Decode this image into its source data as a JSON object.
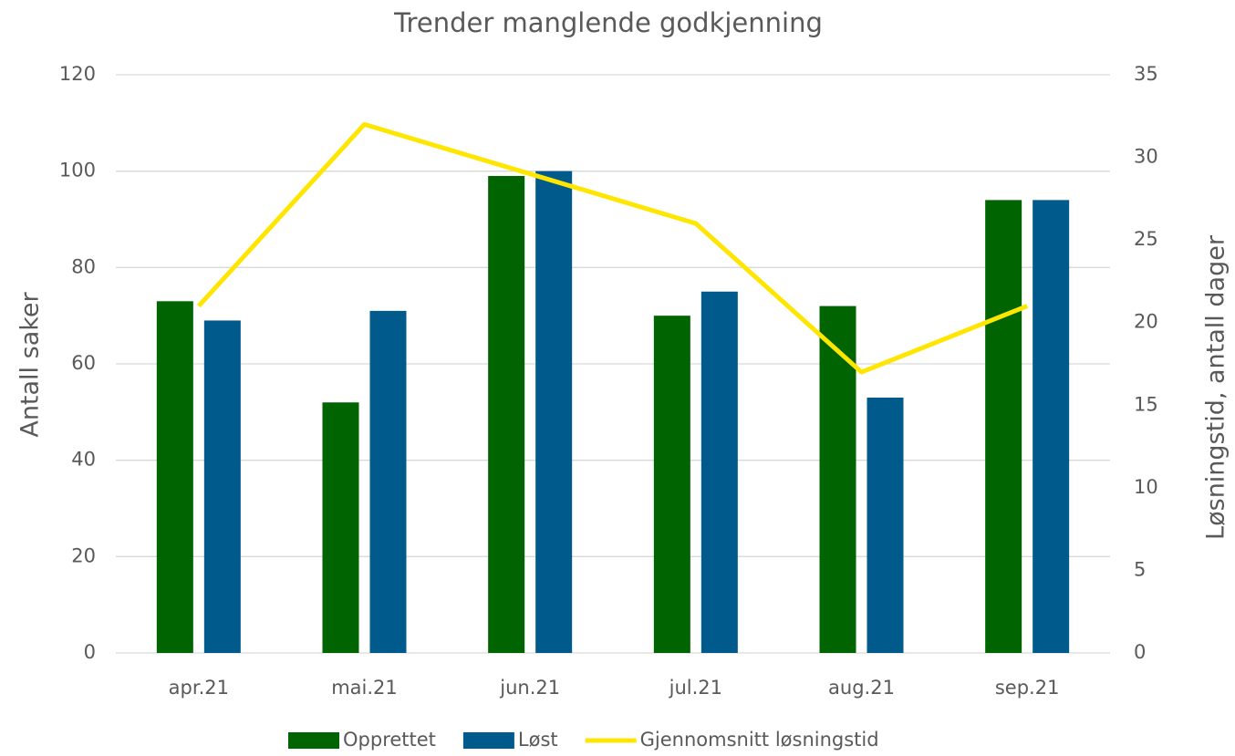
{
  "chart_data": {
    "type": "bar",
    "title": "Trender manglende godkjenning",
    "y_label": "Antall saker",
    "y2_label": "Løsningstid, antall dager",
    "categories": [
      "apr.21",
      "mai.21",
      "jun.21",
      "jul.21",
      "aug.21",
      "sep.21"
    ],
    "series": [
      {
        "name": "Opprettet",
        "type": "bar",
        "color": "#006400",
        "values": [
          73,
          52,
          99,
          70,
          72,
          94
        ]
      },
      {
        "name": "Løst",
        "type": "bar",
        "color": "#005a8c",
        "values": [
          69,
          71,
          100,
          75,
          53,
          94
        ]
      },
      {
        "name": "Gjennomsnitt løsningstid",
        "type": "line",
        "axis": "y2",
        "color": "#ffe600",
        "values": [
          21,
          32,
          29,
          26,
          17,
          21
        ]
      }
    ],
    "ylim": [
      0,
      120
    ],
    "yticks": [
      0,
      20,
      40,
      60,
      80,
      100,
      120
    ],
    "y2lim": [
      0,
      35
    ],
    "y2ticks": [
      0,
      5,
      10,
      15,
      20,
      25,
      30,
      35
    ],
    "grid": true,
    "legend": "bottom"
  }
}
